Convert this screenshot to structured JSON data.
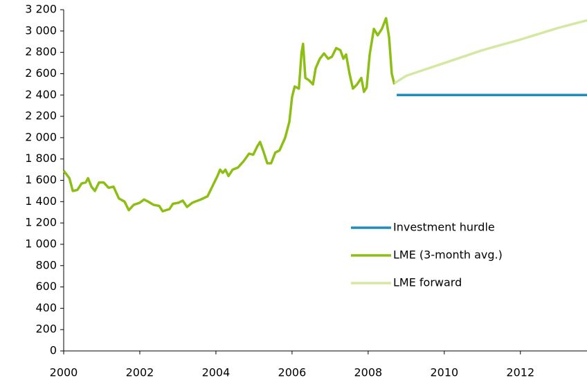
{
  "chart_data": {
    "type": "line",
    "xlim": [
      2000,
      2013.75
    ],
    "xticks": [
      2000,
      2002,
      2004,
      2006,
      2008,
      2010,
      2012
    ],
    "ylim": [
      0,
      3200
    ],
    "yticks": [
      0,
      200,
      400,
      600,
      800,
      {
        "value": 1000,
        "label": "1 000"
      },
      {
        "value": 1200,
        "label": "1 200"
      },
      {
        "value": 1400,
        "label": "1 400"
      },
      {
        "value": 1600,
        "label": "1 600"
      },
      {
        "value": 1800,
        "label": "1 800"
      },
      {
        "value": 2000,
        "label": "2 000"
      },
      {
        "value": 2200,
        "label": "2 200"
      },
      {
        "value": 2400,
        "label": "2 400"
      },
      {
        "value": 2600,
        "label": "2 600"
      },
      {
        "value": 2800,
        "label": "2 800"
      },
      {
        "value": 3000,
        "label": "3 000"
      },
      {
        "value": 3200,
        "label": "3 200"
      }
    ],
    "grid": false,
    "legend": "lower right",
    "series": [
      {
        "name": "Investment hurdle",
        "color": "#1b8ebf",
        "x": [
          2008.75,
          2013.75
        ],
        "values": [
          2400,
          2400
        ]
      },
      {
        "name": "LME (3-month avg.)",
        "color": "#8cbe14",
        "x": [
          2000.0,
          2000.15,
          2000.24,
          2000.36,
          2000.47,
          2000.58,
          2000.64,
          2000.73,
          2000.82,
          2000.93,
          2001.05,
          2001.18,
          2001.31,
          2001.45,
          2001.6,
          2001.71,
          2001.84,
          2002.0,
          2002.11,
          2002.22,
          2002.36,
          2002.51,
          2002.6,
          2002.78,
          2002.87,
          2003.02,
          2003.13,
          2003.24,
          2003.38,
          2003.6,
          2003.78,
          2003.93,
          2004.04,
          2004.11,
          2004.18,
          2004.25,
          2004.33,
          2004.44,
          2004.58,
          2004.73,
          2004.87,
          2004.98,
          2005.09,
          2005.16,
          2005.24,
          2005.35,
          2005.45,
          2005.56,
          2005.67,
          2005.82,
          2005.93,
          2006.0,
          2006.07,
          2006.18,
          2006.25,
          2006.29,
          2006.35,
          2006.44,
          2006.55,
          2006.62,
          2006.73,
          2006.84,
          2006.95,
          2007.05,
          2007.16,
          2007.27,
          2007.35,
          2007.42,
          2007.51,
          2007.6,
          2007.71,
          2007.82,
          2007.89,
          2007.96,
          2008.04,
          2008.15,
          2008.25,
          2008.36,
          2008.47,
          2008.55,
          2008.62,
          2008.69
        ],
        "values": [
          1690,
          1620,
          1500,
          1510,
          1570,
          1580,
          1620,
          1540,
          1500,
          1580,
          1580,
          1530,
          1540,
          1430,
          1400,
          1320,
          1370,
          1390,
          1420,
          1400,
          1370,
          1360,
          1310,
          1330,
          1380,
          1390,
          1410,
          1350,
          1390,
          1420,
          1450,
          1560,
          1640,
          1700,
          1670,
          1700,
          1640,
          1700,
          1720,
          1780,
          1850,
          1840,
          1920,
          1960,
          1880,
          1760,
          1760,
          1860,
          1880,
          2000,
          2150,
          2380,
          2480,
          2460,
          2800,
          2880,
          2560,
          2540,
          2500,
          2650,
          2740,
          2790,
          2740,
          2760,
          2840,
          2820,
          2740,
          2780,
          2600,
          2460,
          2500,
          2560,
          2430,
          2470,
          2780,
          3020,
          2960,
          3020,
          3120,
          2940,
          2600,
          2500
        ]
      },
      {
        "name": "LME forward",
        "color": "#d3e8a0",
        "x": [
          2008.69,
          2009,
          2009.5,
          2010,
          2010.5,
          2011,
          2011.5,
          2012,
          2012.5,
          2013,
          2013.75
        ],
        "values": [
          2510,
          2580,
          2640,
          2700,
          2760,
          2820,
          2870,
          2920,
          2975,
          3030,
          3100
        ]
      }
    ]
  }
}
